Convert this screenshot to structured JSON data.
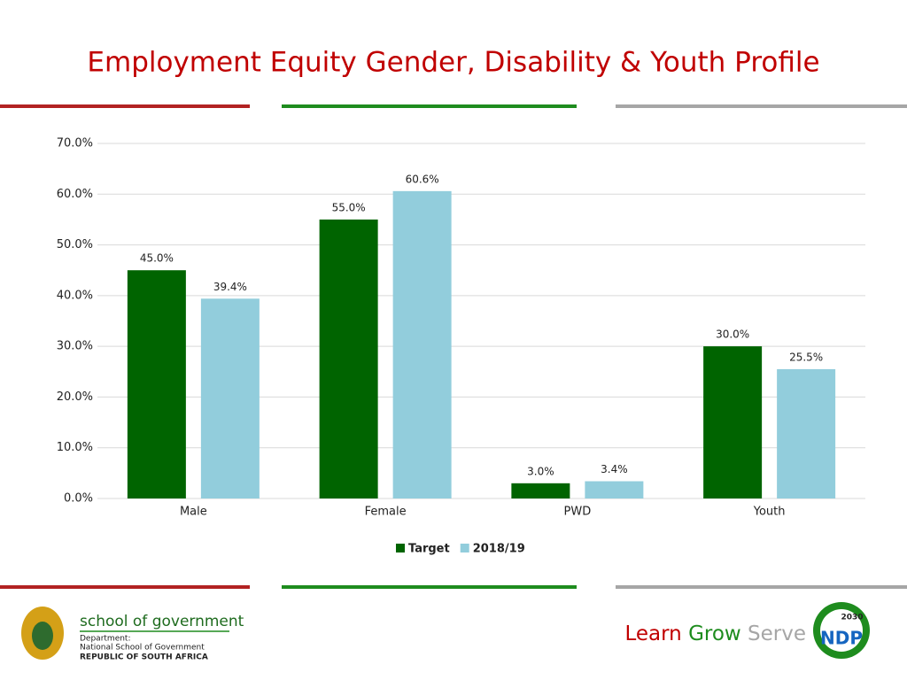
{
  "chart_data": {
    "type": "bar",
    "title": "Employment Equity Gender, Disability & Youth Profile",
    "categories": [
      "Male",
      "Female",
      "PWD",
      "Youth"
    ],
    "series": [
      {
        "name": "Target",
        "color": "#006400",
        "values": [
          45,
          55,
          3,
          30
        ],
        "value_labels": [
          "45.0%",
          "55.0%",
          "3.0%",
          "30.0%"
        ]
      },
      {
        "name": "2018/19",
        "color": "#92cddc",
        "values": [
          39.4,
          60.6,
          3.4,
          25.5
        ],
        "value_labels": [
          "39.4%",
          "60.6%",
          "3.4%",
          "25.5%"
        ]
      }
    ],
    "ylim": [
      0,
      70
    ],
    "yticks": [
      {
        "value": 0,
        "label": "0.0%"
      },
      {
        "value": 10,
        "label": "10.0%"
      },
      {
        "value": 20,
        "label": "20.0%"
      },
      {
        "value": 30,
        "label": "30.0%"
      },
      {
        "value": 40,
        "label": "40.0%"
      },
      {
        "value": 50,
        "label": "50.0%"
      },
      {
        "value": 60,
        "label": "60.0%"
      },
      {
        "value": 70,
        "label": "70.0%"
      }
    ],
    "grid": true,
    "legend": "bottom"
  },
  "footer": {
    "logo_title": "school of government",
    "department": "Department:",
    "school": "National School of Government",
    "country": "REPUBLIC OF SOUTH AFRICA",
    "slogan": [
      "Learn",
      "Grow",
      "Serve"
    ],
    "badge": "NDP",
    "badge_year": "2030"
  }
}
